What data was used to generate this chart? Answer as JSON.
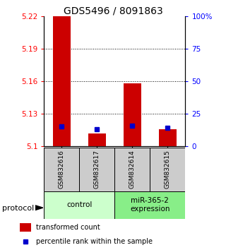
{
  "title": "GDS5496 / 8091863",
  "samples": [
    "GSM832616",
    "GSM832617",
    "GSM832614",
    "GSM832615"
  ],
  "red_values": [
    5.221,
    5.112,
    5.158,
    5.116
  ],
  "blue_values": [
    5.118,
    5.116,
    5.119,
    5.117
  ],
  "ymin": 5.1,
  "ymax": 5.22,
  "yticks_left": [
    5.1,
    5.13,
    5.16,
    5.19,
    5.22
  ],
  "yticks_left_labels": [
    "5.1",
    "5.13",
    "5.16",
    "5.19",
    "5.22"
  ],
  "yticks_right": [
    0,
    25,
    50,
    75,
    100
  ],
  "yticks_right_labels": [
    "0",
    "25",
    "50",
    "75",
    "100%"
  ],
  "bar_color": "#cc0000",
  "blue_color": "#0000cc",
  "groups": [
    {
      "label": "control",
      "samples": [
        0,
        1
      ],
      "color": "#ccffcc"
    },
    {
      "label": "miR-365-2\nexpression",
      "samples": [
        2,
        3
      ],
      "color": "#88ee88"
    }
  ],
  "legend_red": "transformed count",
  "legend_blue": "percentile rank within the sample",
  "bar_width": 0.5,
  "sample_bg_color": "#cccccc",
  "protocol_label": "protocol"
}
